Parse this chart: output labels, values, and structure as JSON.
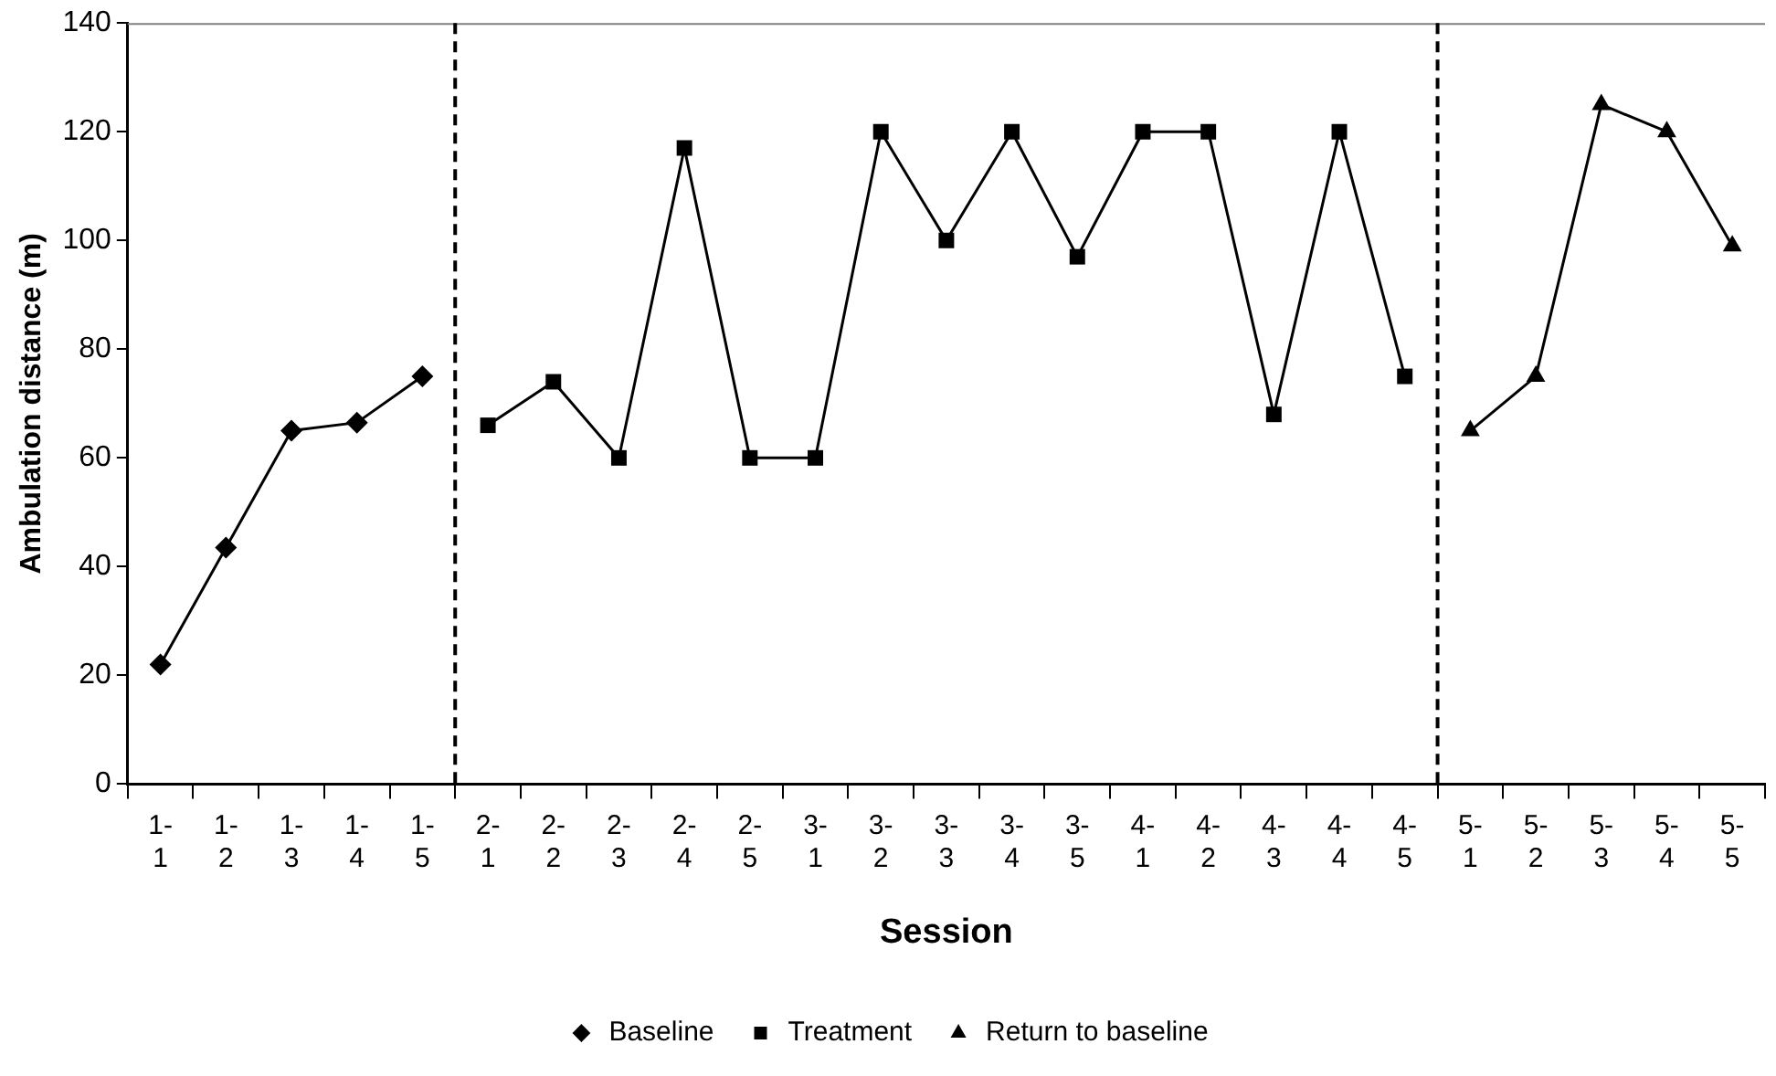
{
  "chart_data": {
    "type": "line",
    "xlabel": "Session",
    "ylabel": "Ambulation distance (m)",
    "categories": [
      "1-1",
      "1-2",
      "1-3",
      "1-4",
      "1-5",
      "2-1",
      "2-2",
      "2-3",
      "2-4",
      "2-5",
      "3-1",
      "3-2",
      "3-3",
      "3-4",
      "3-5",
      "4-1",
      "4-2",
      "4-3",
      "4-4",
      "4-5",
      "5-1",
      "5-2",
      "5-3",
      "5-4",
      "5-5"
    ],
    "series": [
      {
        "name": "Baseline",
        "color": "#000000",
        "marker": "diamond",
        "values": [
          22,
          43.5,
          65,
          66.5,
          75,
          null,
          null,
          null,
          null,
          null,
          null,
          null,
          null,
          null,
          null,
          null,
          null,
          null,
          null,
          null,
          null,
          null,
          null,
          null,
          null
        ]
      },
      {
        "name": "Treatment",
        "color": "#000000",
        "marker": "square",
        "values": [
          null,
          null,
          null,
          null,
          null,
          66,
          74,
          60,
          117,
          60,
          60,
          120,
          100,
          120,
          97,
          120,
          120,
          68,
          120,
          75,
          null,
          null,
          null,
          null,
          null
        ]
      },
      {
        "name": "Return to baseline",
        "color": "#000000",
        "marker": "triangle",
        "values": [
          null,
          null,
          null,
          null,
          null,
          null,
          null,
          null,
          null,
          null,
          null,
          null,
          null,
          null,
          null,
          null,
          null,
          null,
          null,
          null,
          65,
          75,
          125,
          120,
          99
        ]
      }
    ],
    "ylim": [
      0,
      140
    ],
    "yticks": [
      0,
      20,
      40,
      60,
      80,
      100,
      120,
      140
    ],
    "grid": false,
    "legend": "bottom",
    "line_style": "solid"
  }
}
